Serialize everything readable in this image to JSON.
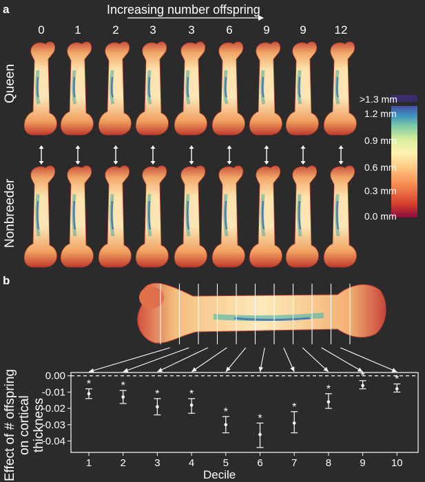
{
  "panel_a": {
    "letter": "a",
    "title": "Increasing number offspring",
    "offspring_counts": [
      "0",
      "1",
      "2",
      "3",
      "3",
      "6",
      "9",
      "9",
      "12"
    ],
    "row_labels": {
      "top": "Queen",
      "bottom": "Nonbreeder"
    }
  },
  "colorbar": {
    "labels": [
      ">1.3 mm",
      "1.2 mm",
      "0.9 mm",
      "0.6 mm",
      "0.3 mm",
      "0.0 mm"
    ],
    "colors": [
      "#7a0a3c",
      "#d73027",
      "#f46d43",
      "#fdae61",
      "#fee08b",
      "#ffffbf",
      "#d9ef8b",
      "#66c2a5",
      "#3288bd",
      "#5e4fa2",
      "#3a2a6e"
    ]
  },
  "panel_b": {
    "letter": "b"
  },
  "chart_data": {
    "type": "scatter",
    "xlabel": "Decile",
    "ylabel": "Effect of # offspring on cortical thickness",
    "categories": [
      "1",
      "2",
      "3",
      "4",
      "5",
      "6",
      "7",
      "8",
      "9",
      "10"
    ],
    "values": [
      -0.011,
      -0.013,
      -0.019,
      -0.018,
      -0.03,
      -0.036,
      -0.029,
      -0.016,
      -0.006,
      -0.008
    ],
    "error_low": [
      -0.014,
      -0.017,
      -0.024,
      -0.023,
      -0.035,
      -0.044,
      -0.035,
      -0.02,
      -0.008,
      -0.01
    ],
    "error_high": [
      -0.008,
      -0.009,
      -0.014,
      -0.014,
      -0.025,
      -0.029,
      -0.022,
      -0.011,
      -0.003,
      -0.005
    ],
    "significance": [
      "*",
      "*",
      "*",
      "*",
      "*",
      "*",
      "*",
      "*",
      "*",
      "*"
    ],
    "yticks": [
      "0.00",
      "-0.01",
      "-0.02",
      "-0.03",
      "-0.04"
    ],
    "ylim": [
      -0.047,
      0.002
    ],
    "reference_line": 0.0
  }
}
